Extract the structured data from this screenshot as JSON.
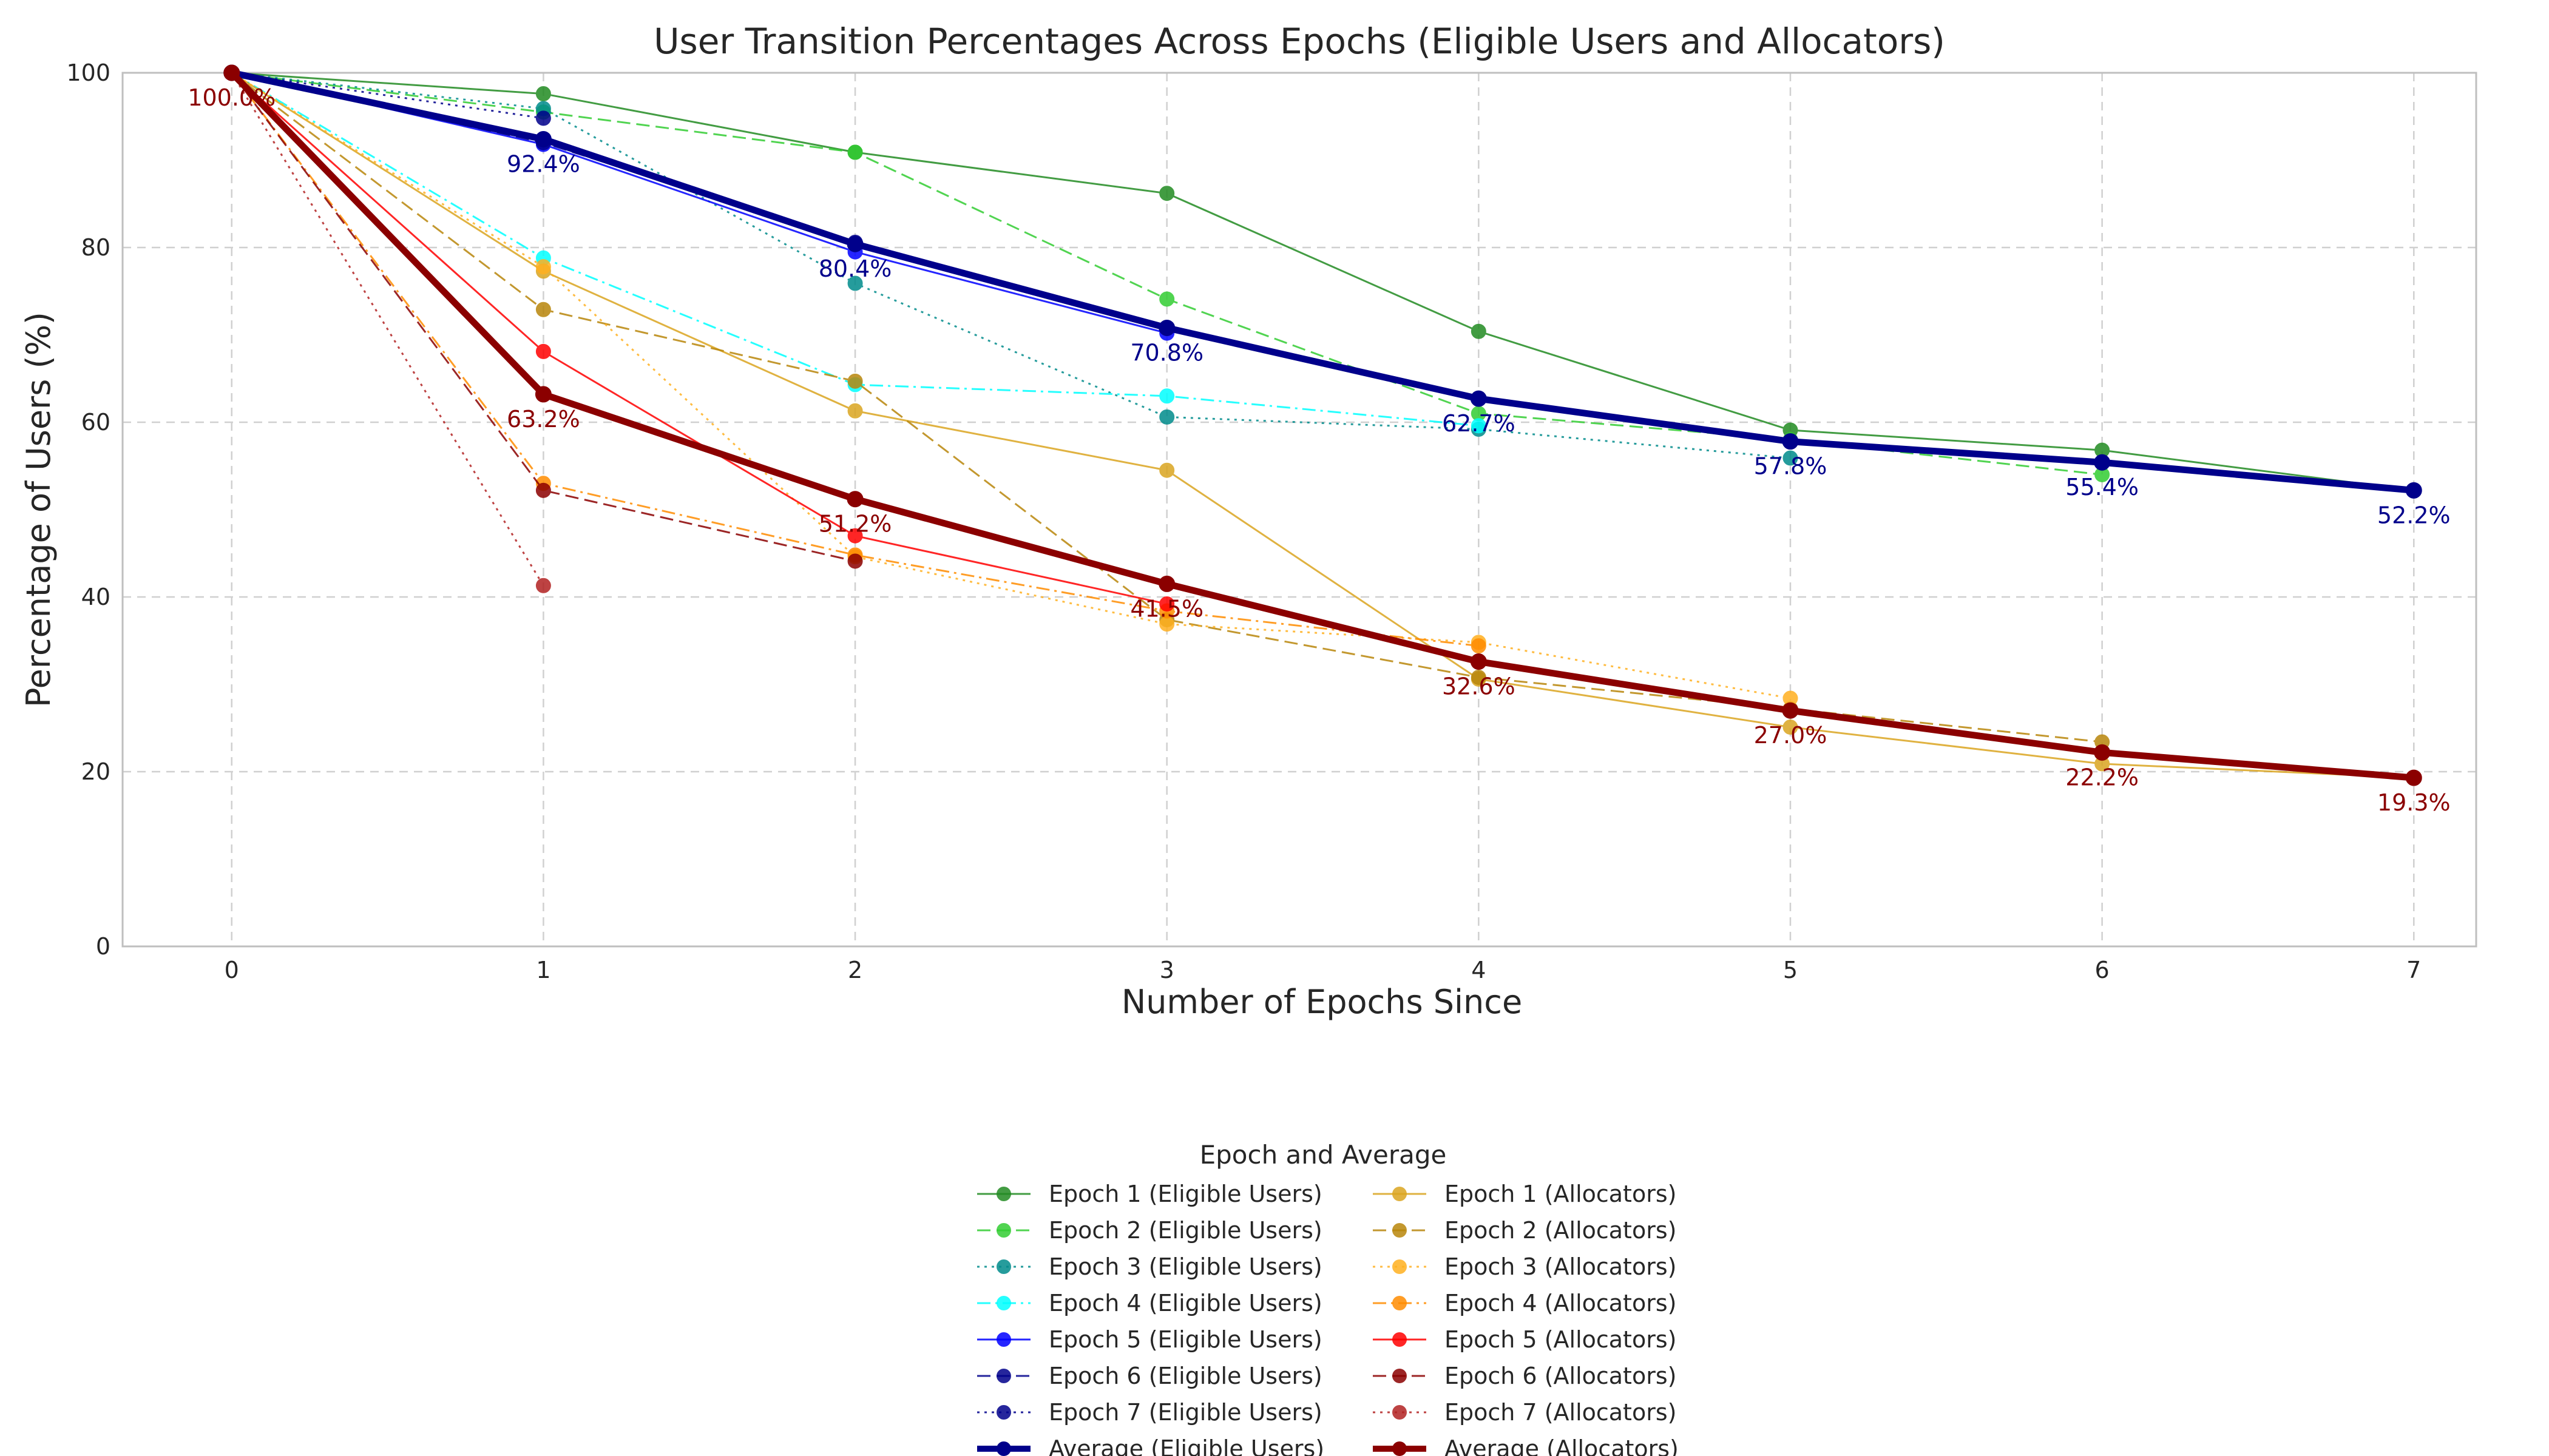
{
  "chart_data": {
    "type": "line",
    "title": "User Transition Percentages Across Epochs (Eligible Users and Allocators)",
    "xlabel": "Number of Epochs Since",
    "ylabel": "Percentage of Users (%)",
    "xlim": [
      -0.35,
      7.2
    ],
    "ylim": [
      0,
      100
    ],
    "x_ticks": [
      "0",
      "1",
      "2",
      "3",
      "4",
      "5",
      "6",
      "7"
    ],
    "y_ticks": [
      "0",
      "20",
      "40",
      "60",
      "80",
      "100"
    ],
    "grid": true,
    "legend": {
      "title": "Epoch and Average",
      "placement": "bottom-center",
      "columns": 2
    },
    "series": [
      {
        "name": "Epoch 1 (Eligible Users)",
        "color": "#228B22",
        "dash": "solid",
        "width": 3,
        "alpha": 0.85,
        "x": [
          0,
          1,
          2,
          3,
          4,
          5,
          6,
          7
        ],
        "values": [
          100,
          97.6,
          90.9,
          86.2,
          70.4,
          59.1,
          56.8,
          52.2
        ]
      },
      {
        "name": "Epoch 2 (Eligible Users)",
        "color": "#32CD32",
        "dash": "dashed",
        "width": 3,
        "alpha": 0.85,
        "x": [
          0,
          1,
          2,
          3,
          4,
          5,
          6
        ],
        "values": [
          100,
          95.5,
          90.9,
          74.1,
          61.0,
          58.0,
          54.0
        ]
      },
      {
        "name": "Epoch 3 (Eligible Users)",
        "color": "#008B8B",
        "dash": "dotted",
        "width": 3,
        "alpha": 0.85,
        "x": [
          0,
          1,
          2,
          3,
          4,
          5
        ],
        "values": [
          100,
          95.9,
          75.9,
          60.6,
          59.2,
          55.9
        ]
      },
      {
        "name": "Epoch 4 (Eligible Users)",
        "color": "#00FFFF",
        "dash": "dashdot",
        "width": 3,
        "alpha": 0.85,
        "x": [
          0,
          1,
          2,
          3,
          4
        ],
        "values": [
          100,
          78.8,
          64.3,
          63.0,
          59.6
        ]
      },
      {
        "name": "Epoch 5 (Eligible Users)",
        "color": "#0000FF",
        "dash": "solid",
        "width": 3,
        "alpha": 0.85,
        "x": [
          0,
          1,
          2,
          3
        ],
        "values": [
          100,
          91.8,
          79.5,
          70.2
        ]
      },
      {
        "name": "Epoch 6 (Eligible Users)",
        "color": "#00008B",
        "dash": "dashed",
        "width": 3,
        "alpha": 0.85,
        "x": [
          0,
          1,
          2
        ],
        "values": [
          100,
          92.0,
          80.6
        ]
      },
      {
        "name": "Epoch 7 (Eligible Users)",
        "color": "#00008B",
        "dash": "dotted",
        "width": 3,
        "alpha": 0.85,
        "x": [
          0,
          1
        ],
        "values": [
          100,
          94.8
        ]
      },
      {
        "name": "Average (Eligible Users)",
        "color": "#00008B",
        "dash": "solid",
        "width": 11,
        "alpha": 1,
        "x": [
          0,
          1,
          2,
          3,
          4,
          5,
          6,
          7
        ],
        "values": [
          100,
          92.4,
          80.4,
          70.8,
          62.7,
          57.8,
          55.4,
          52.2
        ]
      },
      {
        "name": "Epoch 1 (Allocators)",
        "color": "#DAA520",
        "dash": "solid",
        "width": 3,
        "alpha": 0.85,
        "x": [
          0,
          1,
          2,
          3,
          4,
          5,
          6,
          7
        ],
        "values": [
          100,
          77.3,
          61.3,
          54.5,
          30.6,
          25.1,
          20.9,
          19.3
        ]
      },
      {
        "name": "Epoch 2 (Allocators)",
        "color": "#B8860B",
        "dash": "dashed",
        "width": 3,
        "alpha": 0.85,
        "x": [
          0,
          1,
          2,
          3,
          4,
          5,
          6
        ],
        "values": [
          100,
          72.9,
          64.7,
          37.4,
          30.8,
          27.2,
          23.4
        ]
      },
      {
        "name": "Epoch 3 (Allocators)",
        "color": "#FFB020",
        "dash": "dotted",
        "width": 3,
        "alpha": 0.85,
        "x": [
          0,
          1,
          2,
          3,
          4,
          5
        ],
        "values": [
          100,
          77.8,
          44.6,
          36.9,
          34.8,
          28.4
        ]
      },
      {
        "name": "Epoch 4 (Allocators)",
        "color": "#FF8C00",
        "dash": "dashdot",
        "width": 3,
        "alpha": 0.85,
        "x": [
          0,
          1,
          2,
          3,
          4
        ],
        "values": [
          100,
          53.0,
          44.8,
          38.4,
          34.4
        ]
      },
      {
        "name": "Epoch 5 (Allocators)",
        "color": "#FF0000",
        "dash": "solid",
        "width": 3,
        "alpha": 0.85,
        "x": [
          0,
          1,
          2,
          3
        ],
        "values": [
          100,
          68.1,
          47.0,
          39.2
        ]
      },
      {
        "name": "Epoch 6 (Allocators)",
        "color": "#8B0000",
        "dash": "dashed",
        "width": 3,
        "alpha": 0.85,
        "x": [
          0,
          1,
          2
        ],
        "values": [
          100,
          52.2,
          44.1
        ]
      },
      {
        "name": "Epoch 7 (Allocators)",
        "color": "#B22222",
        "dash": "dotted",
        "width": 3,
        "alpha": 0.85,
        "x": [
          0,
          1
        ],
        "values": [
          100,
          41.3
        ]
      },
      {
        "name": "Average (Allocators)",
        "color": "#8B0000",
        "dash": "solid",
        "width": 11,
        "alpha": 1,
        "x": [
          0,
          1,
          2,
          3,
          4,
          5,
          6,
          7
        ],
        "values": [
          100,
          63.2,
          51.2,
          41.5,
          32.6,
          27.0,
          22.2,
          19.3
        ]
      }
    ],
    "data_labels": [
      {
        "series": "Average (Eligible Users)",
        "color": "#00008B",
        "x": [
          1,
          2,
          3,
          4,
          5,
          6,
          7
        ],
        "labels": [
          "92.4%",
          "80.4%",
          "70.8%",
          "62.7%",
          "57.8%",
          "55.4%",
          "52.2%"
        ],
        "values": [
          92.4,
          80.4,
          70.8,
          62.7,
          57.8,
          55.4,
          52.2
        ]
      },
      {
        "series": "Average (Allocators)",
        "color": "#8B0000",
        "x": [
          0,
          1,
          2,
          3,
          4,
          5,
          6,
          7
        ],
        "labels": [
          "100.0%",
          "63.2%",
          "51.2%",
          "41.5%",
          "32.6%",
          "27.0%",
          "22.2%",
          "19.3%"
        ],
        "values": [
          100,
          63.2,
          51.2,
          41.5,
          32.6,
          27.0,
          22.2,
          19.3
        ]
      }
    ]
  }
}
